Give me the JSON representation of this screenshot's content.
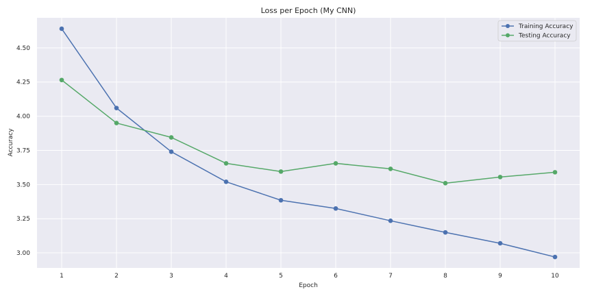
{
  "chart_data": {
    "type": "line",
    "title": "Loss per Epoch (My CNN)",
    "xlabel": "Epoch",
    "ylabel": "Accuracy",
    "x": [
      1,
      2,
      3,
      4,
      5,
      6,
      7,
      8,
      9,
      10
    ],
    "xlim": [
      0.55,
      10.45
    ],
    "ylim": [
      2.89,
      4.72
    ],
    "xticks": [
      "1",
      "2",
      "3",
      "4",
      "5",
      "6",
      "7",
      "8",
      "9",
      "10"
    ],
    "yticks": [
      "3.00",
      "3.25",
      "3.50",
      "3.75",
      "4.00",
      "4.25",
      "4.50"
    ],
    "grid": true,
    "legend_position": "top-right",
    "series": [
      {
        "name": "Training Accuracy",
        "color": "#4c72b0",
        "values": [
          4.64,
          4.06,
          3.74,
          3.52,
          3.385,
          3.325,
          3.235,
          3.15,
          3.07,
          2.97
        ]
      },
      {
        "name": "Testing Accuracy",
        "color": "#55a868",
        "values": [
          4.265,
          3.95,
          3.845,
          3.655,
          3.595,
          3.655,
          3.615,
          3.51,
          3.555,
          3.59
        ]
      }
    ]
  }
}
